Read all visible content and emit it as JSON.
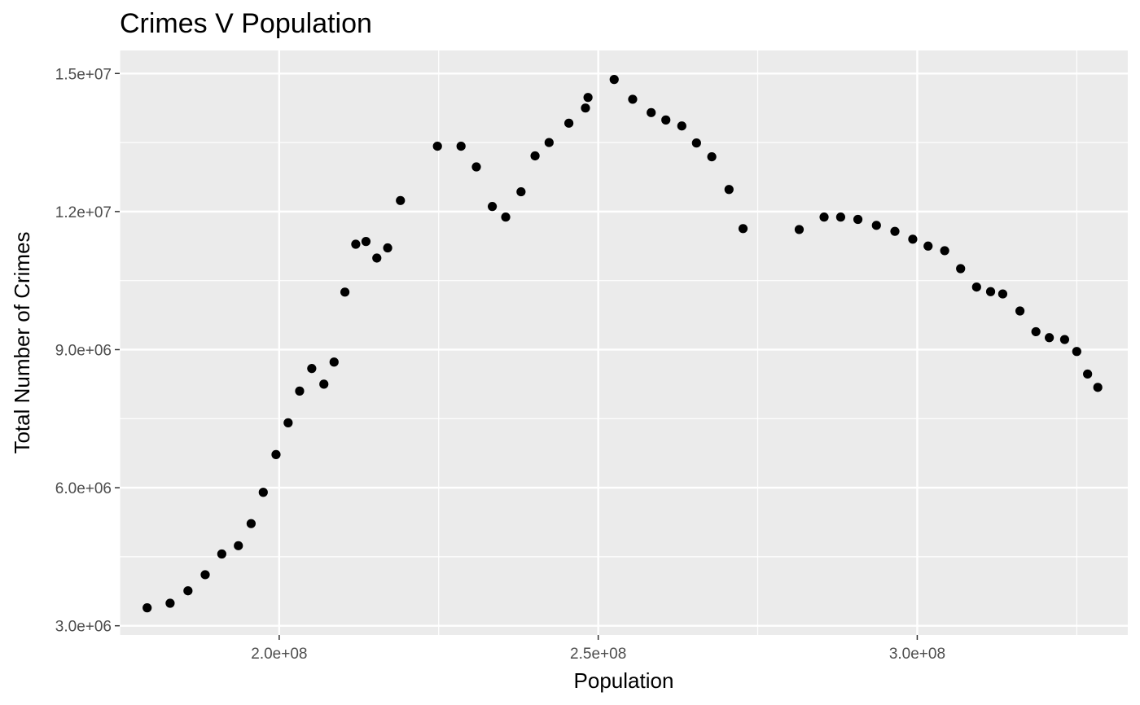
{
  "chart_data": {
    "type": "scatter",
    "title": "Crimes V Population",
    "xlabel": "Population",
    "ylabel": "Total Number of Crimes",
    "xlim": [
      175000000,
      333000000
    ],
    "ylim": [
      2800000,
      15500000
    ],
    "x_ticks": [
      {
        "value": 200000000,
        "label": "2.0e+08"
      },
      {
        "value": 250000000,
        "label": "2.5e+08"
      },
      {
        "value": 300000000,
        "label": "3.0e+08"
      }
    ],
    "y_ticks": [
      {
        "value": 3000000,
        "label": "3.0e+06"
      },
      {
        "value": 6000000,
        "label": "6.0e+06"
      },
      {
        "value": 9000000,
        "label": "9.0e+06"
      },
      {
        "value": 12000000,
        "label": "1.2e+07"
      },
      {
        "value": 15000000,
        "label": "1.5e+07"
      }
    ],
    "x_minor": [
      175000000,
      225000000,
      275000000,
      325000000
    ],
    "y_minor": [
      4500000,
      7500000,
      10500000,
      13500000
    ],
    "grid": true,
    "colors": {
      "panel": "#ebebeb",
      "grid": "#ffffff",
      "point": "#000000"
    },
    "series": [
      {
        "points": [
          [
            179300000,
            3390000
          ],
          [
            182900000,
            3490000
          ],
          [
            185700000,
            3760000
          ],
          [
            188400000,
            4110000
          ],
          [
            191000000,
            4560000
          ],
          [
            193600000,
            4740000
          ],
          [
            195600000,
            5220000
          ],
          [
            197500000,
            5900000
          ],
          [
            199500000,
            6720000
          ],
          [
            201400000,
            7410000
          ],
          [
            203200000,
            8100000
          ],
          [
            205100000,
            8590000
          ],
          [
            207000000,
            8250000
          ],
          [
            208600000,
            8730000
          ],
          [
            210300000,
            10250000
          ],
          [
            212000000,
            11290000
          ],
          [
            213600000,
            11350000
          ],
          [
            215300000,
            10990000
          ],
          [
            217000000,
            11210000
          ],
          [
            219000000,
            12240000
          ],
          [
            224800000,
            13420000
          ],
          [
            228500000,
            13420000
          ],
          [
            230900000,
            12970000
          ],
          [
            233400000,
            12110000
          ],
          [
            235500000,
            11880000
          ],
          [
            237900000,
            12430000
          ],
          [
            240100000,
            13210000
          ],
          [
            242300000,
            13500000
          ],
          [
            245400000,
            13920000
          ],
          [
            248000000,
            14250000
          ],
          [
            248400000,
            14480000
          ],
          [
            252500000,
            14870000
          ],
          [
            255400000,
            14440000
          ],
          [
            258300000,
            14150000
          ],
          [
            260600000,
            13990000
          ],
          [
            263100000,
            13860000
          ],
          [
            265400000,
            13490000
          ],
          [
            267800000,
            13190000
          ],
          [
            270500000,
            12480000
          ],
          [
            272700000,
            11630000
          ],
          [
            281500000,
            11610000
          ],
          [
            285400000,
            11880000
          ],
          [
            288000000,
            11880000
          ],
          [
            290700000,
            11830000
          ],
          [
            293600000,
            11700000
          ],
          [
            296500000,
            11570000
          ],
          [
            299300000,
            11400000
          ],
          [
            301700000,
            11250000
          ],
          [
            304300000,
            11150000
          ],
          [
            306800000,
            10760000
          ],
          [
            309300000,
            10360000
          ],
          [
            311500000,
            10260000
          ],
          [
            313400000,
            10210000
          ],
          [
            316100000,
            9840000
          ],
          [
            318600000,
            9390000
          ],
          [
            320700000,
            9260000
          ],
          [
            323100000,
            9220000
          ],
          [
            325000000,
            8960000
          ],
          [
            326700000,
            8470000
          ],
          [
            328300000,
            8180000
          ]
        ]
      }
    ]
  }
}
